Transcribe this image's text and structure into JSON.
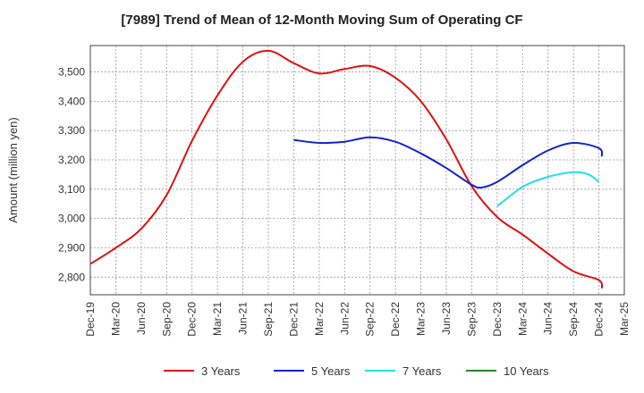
{
  "chart_data": {
    "type": "line",
    "title": "[7989]  Trend of Mean of 12-Month Moving Sum of Operating CF",
    "xlabel": "",
    "ylabel": "Amount (million yen)",
    "ylim": [
      2740,
      3590
    ],
    "yticks": [
      2800,
      2900,
      3000,
      3100,
      3200,
      3300,
      3400,
      3500
    ],
    "ytick_labels": [
      "2,800",
      "2,900",
      "3,000",
      "3,100",
      "3,200",
      "3,300",
      "3,400",
      "3,500"
    ],
    "xtick_labels": [
      "Dec-19",
      "Mar-20",
      "Jun-20",
      "Sep-20",
      "Dec-20",
      "Mar-21",
      "Jun-21",
      "Sep-21",
      "Dec-21",
      "Mar-22",
      "Jun-22",
      "Sep-22",
      "Dec-22",
      "Mar-23",
      "Jun-23",
      "Sep-23",
      "Dec-23",
      "Mar-24",
      "Jun-24",
      "Sep-24",
      "Dec-24",
      "Mar-25"
    ],
    "grid": true,
    "legend_position": "bottom",
    "series": [
      {
        "name": "3 Years",
        "color": "#dd1111",
        "points": [
          [
            0,
            2845
          ],
          [
            1,
            2900
          ],
          [
            2,
            2965
          ],
          [
            3,
            3080
          ],
          [
            4,
            3265
          ],
          [
            5,
            3420
          ],
          [
            6,
            3535
          ],
          [
            7,
            3572
          ],
          [
            8,
            3530
          ],
          [
            9,
            3495
          ],
          [
            10,
            3510
          ],
          [
            11,
            3520
          ],
          [
            12,
            3480
          ],
          [
            13,
            3400
          ],
          [
            14,
            3270
          ],
          [
            15,
            3110
          ],
          [
            16,
            3005
          ],
          [
            17,
            2945
          ],
          [
            18,
            2880
          ],
          [
            19,
            2820
          ],
          [
            20,
            2790
          ],
          [
            20,
            2762
          ]
        ]
      },
      {
        "name": "5 Years",
        "color": "#1122cc",
        "points": [
          [
            8,
            3268
          ],
          [
            9,
            3258
          ],
          [
            10,
            3262
          ],
          [
            11,
            3277
          ],
          [
            12,
            3262
          ],
          [
            13,
            3222
          ],
          [
            14,
            3172
          ],
          [
            15,
            3115
          ],
          [
            15.4,
            3106
          ],
          [
            16,
            3125
          ],
          [
            17,
            3182
          ],
          [
            18,
            3232
          ],
          [
            19,
            3258
          ],
          [
            20,
            3240
          ],
          [
            20,
            3212
          ]
        ]
      },
      {
        "name": "7 Years",
        "color": "#22e0e8",
        "points": [
          [
            16,
            3042
          ],
          [
            17,
            3108
          ],
          [
            18,
            3142
          ],
          [
            19,
            3158
          ],
          [
            19.6,
            3150
          ],
          [
            20,
            3125
          ]
        ]
      },
      {
        "name": "10 Years",
        "color": "#228822",
        "points": []
      }
    ]
  }
}
